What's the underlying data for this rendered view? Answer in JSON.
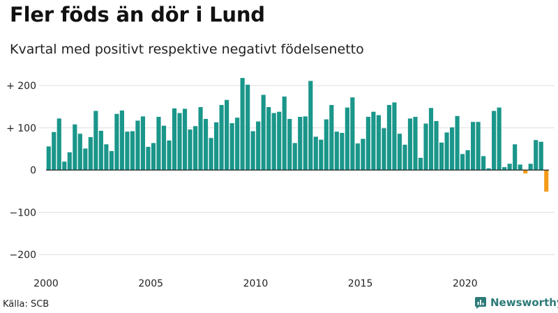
{
  "header": {
    "title": "Fler föds än dör i Lund",
    "subtitle": "Kvartal med positivt respektive negativt födelsenetto"
  },
  "footer": {
    "source": "Källa: SCB",
    "brand": "Newsworthy"
  },
  "colors": {
    "positive": "#1a968a",
    "negative": "#f39c1b",
    "grid": "#dedede",
    "zero_line": "#222222",
    "brand": "#2d7a78"
  },
  "chart_data": {
    "type": "bar",
    "title": "Fler föds än dör i Lund",
    "subtitle": "Kvartal med positivt respektive negativt födelsenetto",
    "xlabel": "",
    "ylabel": "",
    "ylim": [
      -200,
      200
    ],
    "y_ticks": [
      {
        "value": 200,
        "label": "+ 200"
      },
      {
        "value": 100,
        "label": "+ 100"
      },
      {
        "value": 0,
        "label": "0"
      },
      {
        "value": -100,
        "label": "−100"
      },
      {
        "value": -200,
        "label": "−200"
      }
    ],
    "x_ticks": [
      {
        "value": 2000,
        "label": "2000"
      },
      {
        "value": 2005,
        "label": "2005"
      },
      {
        "value": 2010,
        "label": "2010"
      },
      {
        "value": 2015,
        "label": "2015"
      },
      {
        "value": 2020,
        "label": "2020"
      }
    ],
    "start_year": 2000,
    "periods_per_year": 4,
    "values": [
      56,
      90,
      122,
      20,
      42,
      108,
      86,
      51,
      78,
      140,
      93,
      61,
      45,
      133,
      141,
      91,
      92,
      117,
      127,
      55,
      64,
      126,
      105,
      70,
      146,
      135,
      145,
      96,
      104,
      149,
      121,
      76,
      113,
      154,
      166,
      111,
      124,
      218,
      202,
      92,
      115,
      178,
      149,
      135,
      138,
      174,
      121,
      64,
      126,
      127,
      211,
      79,
      72,
      120,
      154,
      91,
      88,
      148,
      172,
      63,
      74,
      126,
      138,
      130,
      99,
      154,
      160,
      86,
      60,
      122,
      126,
      29,
      110,
      147,
      116,
      65,
      89,
      101,
      128,
      38,
      47,
      114,
      114,
      33,
      4,
      140,
      148,
      7,
      15,
      61,
      13,
      -8,
      15,
      71,
      67,
      -51
    ]
  }
}
